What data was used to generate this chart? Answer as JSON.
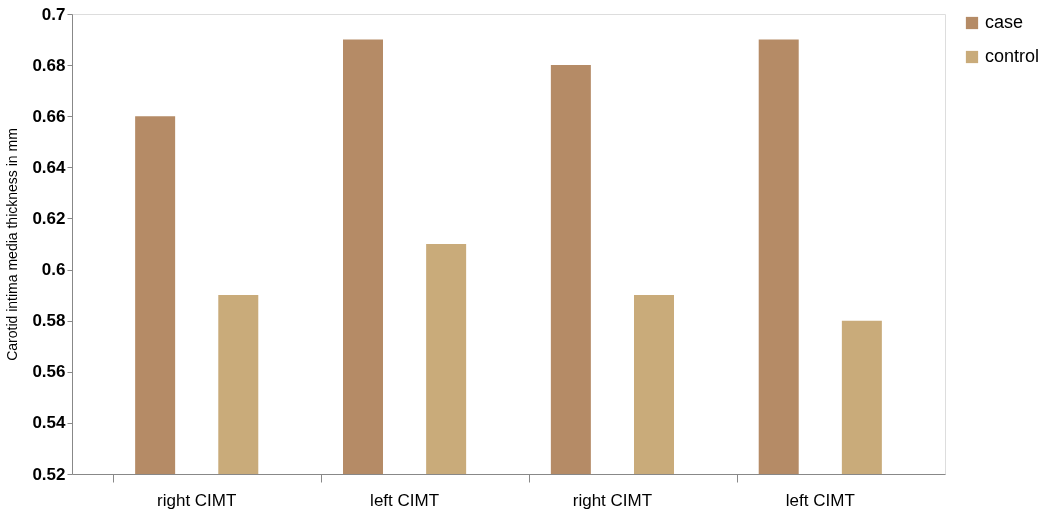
{
  "chart_data": {
    "type": "bar",
    "ylabel": "Carotid intima media thickness in mm",
    "categories": [
      "right CIMT",
      "left CIMT",
      "right CIMT",
      "left CIMT"
    ],
    "series": [
      {
        "name": "case",
        "color": "#b58b66",
        "values": [
          0.66,
          0.69,
          0.68,
          0.69
        ]
      },
      {
        "name": "control",
        "color": "#c9ab7a",
        "values": [
          0.59,
          0.61,
          0.59,
          0.58
        ]
      }
    ],
    "ylim": [
      0.52,
      0.7
    ],
    "yticks": [
      0.52,
      0.54,
      0.56,
      0.58,
      0.6,
      0.62,
      0.64,
      0.66,
      0.68,
      0.7
    ],
    "grid": false,
    "legend": "right"
  }
}
